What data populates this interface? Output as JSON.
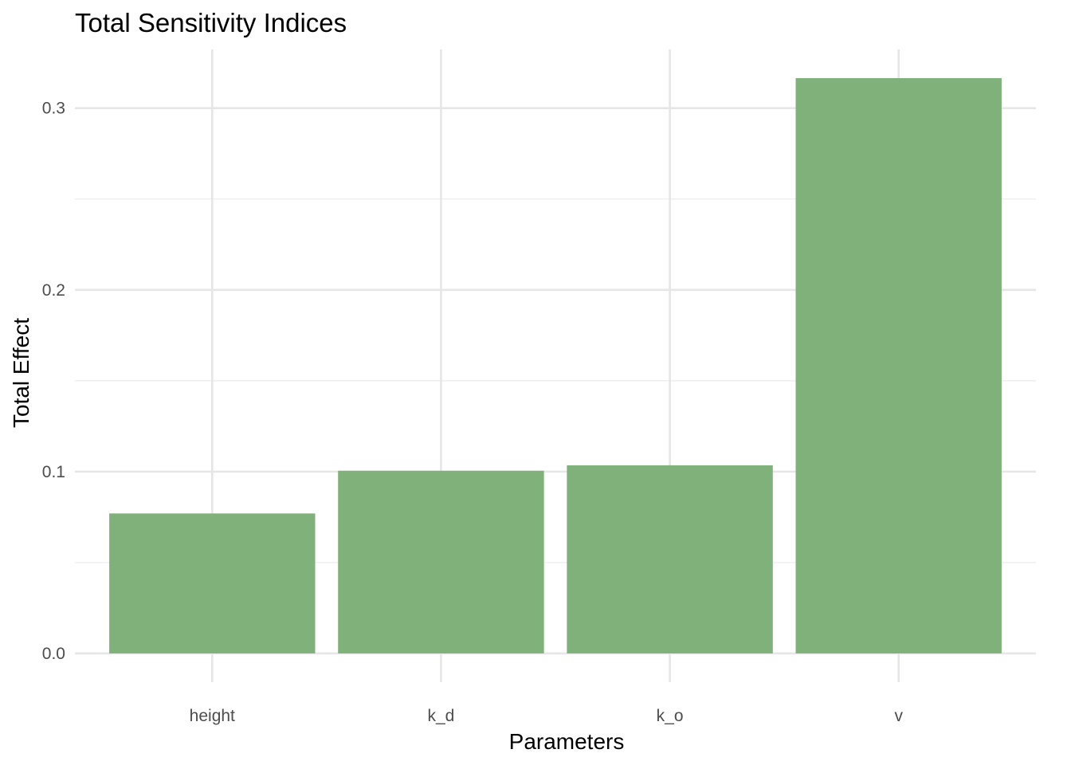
{
  "chart_data": {
    "type": "bar",
    "title": "Total Sensitivity Indices",
    "xlabel": "Parameters",
    "ylabel": "Total Effect",
    "categories": [
      "height",
      "k_d",
      "k_o",
      "v"
    ],
    "values": [
      0.077,
      0.1005,
      0.1035,
      0.3165
    ],
    "ylim": [
      -0.0158,
      0.3323
    ],
    "yticks": [
      0.0,
      0.1,
      0.2,
      0.3
    ],
    "ytick_labels": [
      "0.0",
      "0.1",
      "0.2",
      "0.3"
    ],
    "yminor_ticks": [
      0.05,
      0.15,
      0.25
    ],
    "grid": true,
    "legend": "none",
    "colors": {
      "bar": "#80b17b",
      "grid_major": "#e6e6e6",
      "grid_minor": "#ededed",
      "tick_text": "#4d4d4d",
      "text": "#000000"
    }
  }
}
